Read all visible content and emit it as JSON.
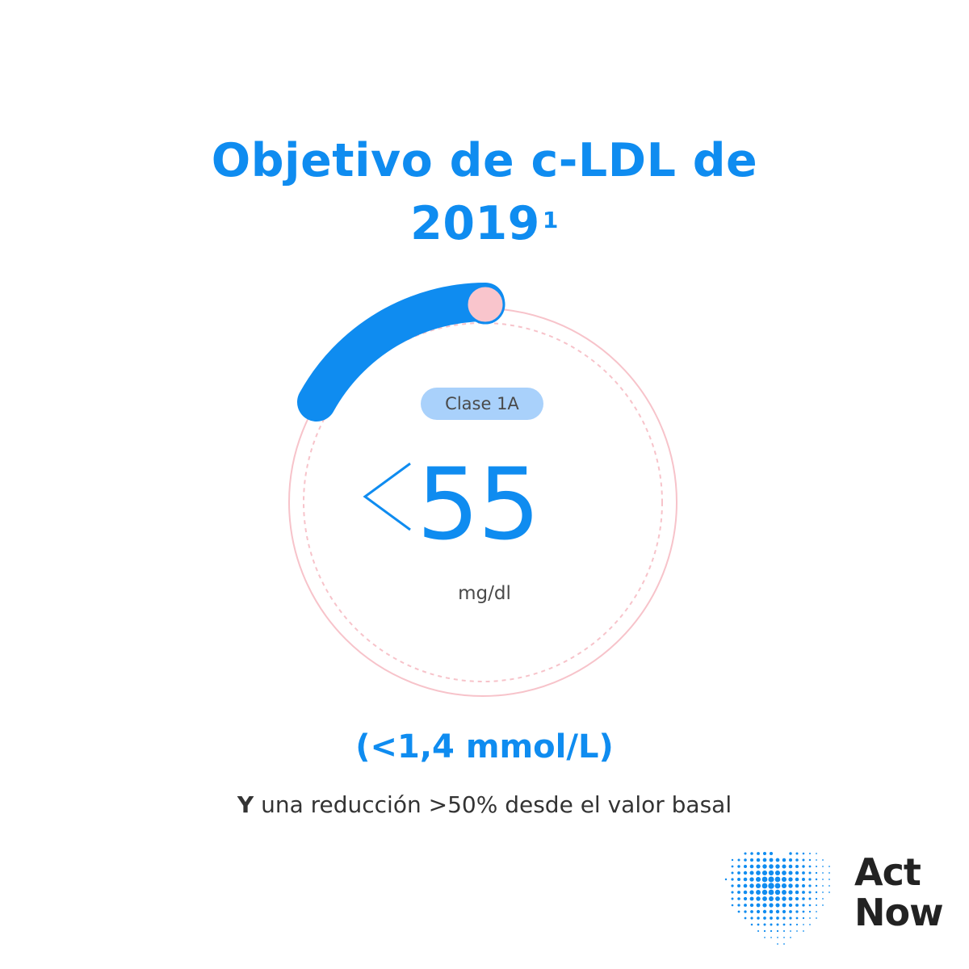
{
  "title": {
    "line1": "Objetivo de c-LDL de",
    "line2": "2019",
    "superscript": "1"
  },
  "gauge": {
    "badge": "Clase 1A",
    "prefix_symbol": "<",
    "value": "55",
    "unit": "mg/dl"
  },
  "equivalent": "(<1,4 mmol/L)",
  "note": {
    "bold": "Y",
    "text": " una reducción >50% desde el valor basal"
  },
  "brand": {
    "line1": "Act",
    "line2": "Now"
  },
  "colors": {
    "accent": "#0f8cf0",
    "ring": "#f7c3ca",
    "knob": "#f9c5cc",
    "badge_bg": "#a9d1fb"
  },
  "icons": {
    "logo": "dotted-heart-icon"
  }
}
